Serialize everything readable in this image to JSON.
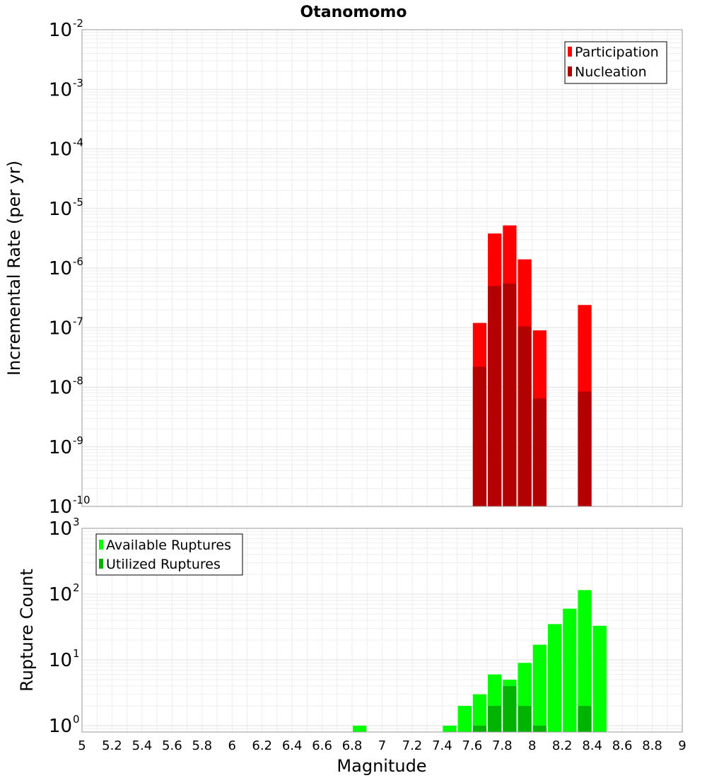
{
  "title": "Otanomomo",
  "colors": {
    "participation": "#ff0000",
    "nucleation": "#b30000",
    "available": "#00ff00",
    "utilized": "#00b300"
  },
  "chart_data": [
    {
      "type": "bar",
      "ylabel": "Incremental Rate (per yr)",
      "yscale": "log",
      "ylim": [
        1e-10,
        0.01
      ],
      "xlim": [
        5,
        9
      ],
      "legend_position": "top-right",
      "grid": true,
      "x": [
        7.65,
        7.75,
        7.85,
        7.95,
        8.05,
        8.35
      ],
      "series": [
        {
          "name": "Participation",
          "values": [
            1.2e-07,
            3.8e-06,
            5.2e-06,
            1.4e-06,
            9e-08,
            2.4e-07
          ]
        },
        {
          "name": "Nucleation",
          "values": [
            2.2e-08,
            5e-07,
            5.5e-07,
            1.05e-07,
            6.5e-09,
            8.5e-09
          ]
        }
      ],
      "y_ticks": [
        {
          "base": "10",
          "exp": "-2"
        },
        {
          "base": "10",
          "exp": "-3"
        },
        {
          "base": "10",
          "exp": "-4"
        },
        {
          "base": "10",
          "exp": "-5"
        },
        {
          "base": "10",
          "exp": "-6"
        },
        {
          "base": "10",
          "exp": "-7"
        },
        {
          "base": "10",
          "exp": "-8"
        },
        {
          "base": "10",
          "exp": "-9"
        },
        {
          "base": "10",
          "exp": "-10"
        }
      ]
    },
    {
      "type": "bar",
      "ylabel": "Rupture Count",
      "xlabel": "Magnitude",
      "yscale": "log",
      "ylim": [
        0.8,
        1000
      ],
      "xlim": [
        5,
        9
      ],
      "legend_position": "top-left",
      "grid": true,
      "x": [
        6.85,
        7.45,
        7.55,
        7.65,
        7.75,
        7.85,
        7.95,
        8.05,
        8.15,
        8.25,
        8.35,
        8.45
      ],
      "series": [
        {
          "name": "Available Ruptures",
          "values": [
            1,
            1,
            2,
            3,
            6,
            5,
            9,
            17,
            35,
            60,
            115,
            33
          ]
        },
        {
          "name": "Utilized Ruptures",
          "values": [
            0,
            0,
            0,
            1,
            2,
            4,
            2,
            1,
            0,
            0,
            2,
            0
          ]
        }
      ],
      "y_ticks": [
        {
          "base": "10",
          "exp": "3"
        },
        {
          "base": "10",
          "exp": "2"
        },
        {
          "base": "10",
          "exp": "1"
        },
        {
          "base": "10",
          "exp": "0"
        }
      ],
      "x_tick_labels": [
        "5",
        "5.2",
        "5.4",
        "5.6",
        "5.8",
        "6",
        "6.2",
        "6.4",
        "6.6",
        "6.8",
        "7",
        "7.2",
        "7.4",
        "7.6",
        "7.8",
        "8",
        "8.2",
        "8.4",
        "8.6",
        "8.8",
        "9"
      ]
    }
  ]
}
